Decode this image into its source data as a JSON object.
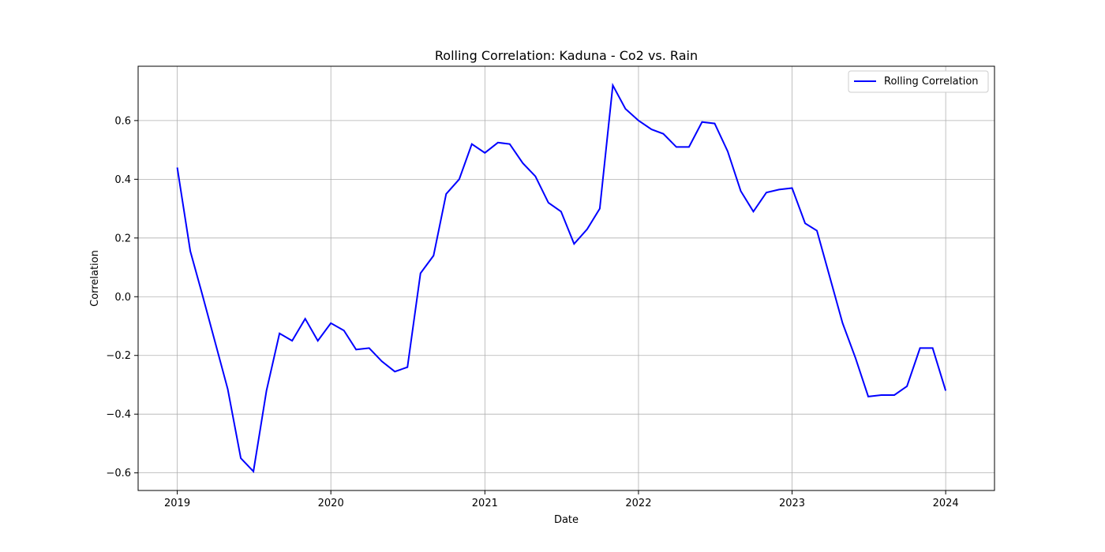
{
  "chart_data": {
    "type": "line",
    "title": "Rolling Correlation: Kaduna - Co2 vs. Rain",
    "xlabel": "Date",
    "ylabel": "Correlation",
    "xlim": [
      "2018-09-30",
      "2024-04-26"
    ],
    "ylim": [
      -0.66,
      0.785
    ],
    "x_ticks": [
      "2019",
      "2020",
      "2021",
      "2022",
      "2023",
      "2024"
    ],
    "y_ticks": [
      "−0.6",
      "−0.4",
      "−0.2",
      "0.0",
      "0.2",
      "0.4",
      "0.6"
    ],
    "y_tick_values": [
      -0.6,
      -0.4,
      -0.2,
      0.0,
      0.2,
      0.4,
      0.6
    ],
    "grid": true,
    "legend_position": "upper-right",
    "colors": {
      "line": "#0000ff",
      "grid": "#b0b0b0",
      "axis": "#000000"
    },
    "series": [
      {
        "name": "Rolling Correlation",
        "x": [
          "2019-01",
          "2019-02",
          "2019-03",
          "2019-04",
          "2019-05",
          "2019-06",
          "2019-07",
          "2019-08",
          "2019-09",
          "2019-10",
          "2019-11",
          "2019-12",
          "2020-01",
          "2020-02",
          "2020-03",
          "2020-04",
          "2020-05",
          "2020-06",
          "2020-07",
          "2020-08",
          "2020-09",
          "2020-10",
          "2020-11",
          "2020-12",
          "2021-01",
          "2021-02",
          "2021-03",
          "2021-04",
          "2021-05",
          "2021-06",
          "2021-07",
          "2021-08",
          "2021-09",
          "2021-10",
          "2021-11",
          "2021-12",
          "2022-01",
          "2022-02",
          "2022-03",
          "2022-04",
          "2022-05",
          "2022-06",
          "2022-07",
          "2022-08",
          "2022-09",
          "2022-10",
          "2022-11",
          "2022-12",
          "2023-01",
          "2023-02",
          "2023-03",
          "2023-04",
          "2023-05",
          "2023-06",
          "2023-07",
          "2023-08",
          "2023-09",
          "2023-10",
          "2023-11",
          "2023-12",
          "2024-01"
        ],
        "y": [
          0.44,
          0.155,
          0.01,
          -0.155,
          -0.315,
          -0.55,
          -0.595,
          -0.32,
          -0.125,
          -0.15,
          -0.075,
          -0.15,
          -0.09,
          -0.115,
          -0.18,
          -0.175,
          -0.22,
          -0.255,
          -0.24,
          0.08,
          0.14,
          0.35,
          0.4,
          0.52,
          0.49,
          0.525,
          0.52,
          0.455,
          0.41,
          0.32,
          0.29,
          0.18,
          0.23,
          0.3,
          0.72,
          0.64,
          0.6,
          0.57,
          0.555,
          0.51,
          0.51,
          0.595,
          0.59,
          0.495,
          0.36,
          0.29,
          0.355,
          0.365,
          0.37,
          0.25,
          0.225,
          0.065,
          -0.09,
          -0.21,
          -0.34,
          -0.335,
          -0.335,
          -0.305,
          -0.175,
          -0.175,
          -0.32
        ]
      }
    ]
  }
}
